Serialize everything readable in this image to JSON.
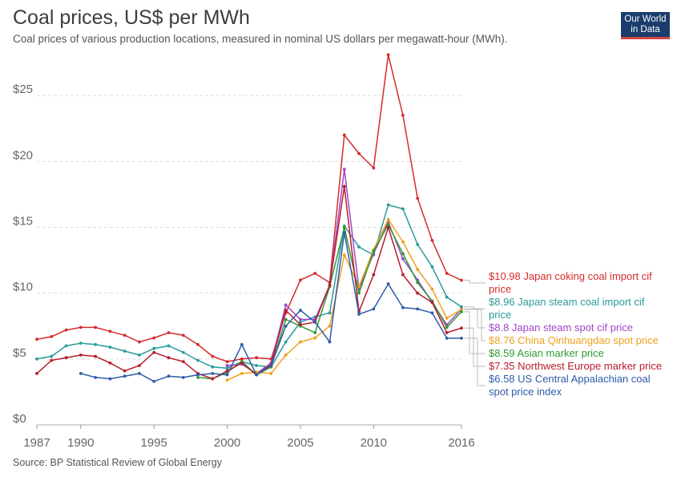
{
  "title": "Coal prices, US$ per MWh",
  "subtitle": "Coal prices of various production locations, measured in nominal US dollars per megawatt-hour (MWh).",
  "logo": {
    "line1": "Our World",
    "line2": "in Data"
  },
  "source": "Source: BP Statistical Review of Global Energy",
  "chart_data": {
    "type": "line",
    "title": "Coal prices, US$ per MWh",
    "xlim": [
      1987,
      2016
    ],
    "ylim": [
      0,
      28
    ],
    "x_ticks": [
      "1987",
      "1990",
      "1995",
      "2000",
      "2005",
      "2010",
      "2016"
    ],
    "x_tick_values": [
      1987,
      1990,
      1995,
      2000,
      2005,
      2010,
      2016
    ],
    "y_ticks": [
      "$0",
      "$5",
      "$10",
      "$15",
      "$20",
      "$25"
    ],
    "y_tick_values": [
      0,
      5,
      10,
      15,
      20,
      25
    ],
    "grid": "horizontal dashed",
    "legend": "right, end-of-line labels",
    "series": [
      {
        "name": "Japan coking coal import cif price",
        "label": "$10.98 Japan coking coal import cif price",
        "color": "#d42b2b",
        "x": [
          1987,
          1988,
          1989,
          1990,
          1991,
          1992,
          1993,
          1994,
          1995,
          1996,
          1997,
          1998,
          1999,
          2000,
          2001,
          2002,
          2003,
          2004,
          2005,
          2006,
          2007,
          2008,
          2009,
          2010,
          2011,
          2012,
          2013,
          2014,
          2015,
          2016
        ],
        "y": [
          6.5,
          6.7,
          7.2,
          7.4,
          7.4,
          7.1,
          6.8,
          6.3,
          6.6,
          7.0,
          6.8,
          6.1,
          5.2,
          4.8,
          5.0,
          5.1,
          5.0,
          8.5,
          11.0,
          11.5,
          10.8,
          22.0,
          20.6,
          19.5,
          28.1,
          23.5,
          17.2,
          14.0,
          11.5,
          10.98
        ]
      },
      {
        "name": "Japan steam coal import cif price",
        "label": "$8.96 Japan steam coal import cif price",
        "color": "#2a9a9a",
        "x": [
          1987,
          1988,
          1989,
          1990,
          1991,
          1992,
          1993,
          1994,
          1995,
          1996,
          1997,
          1998,
          1999,
          2000,
          2001,
          2002,
          2003,
          2004,
          2005,
          2006,
          2007,
          2008,
          2009,
          2010,
          2011,
          2012,
          2013,
          2014,
          2015,
          2016
        ],
        "y": [
          5.0,
          5.2,
          6.0,
          6.2,
          6.1,
          5.9,
          5.6,
          5.3,
          5.8,
          6.0,
          5.5,
          4.9,
          4.4,
          4.3,
          4.8,
          4.5,
          4.4,
          6.3,
          7.8,
          8.2,
          8.5,
          15.1,
          13.5,
          12.9,
          16.7,
          16.4,
          13.7,
          12.0,
          9.7,
          8.96
        ]
      },
      {
        "name": "Japan steam spot cif price",
        "label": "$8.8 Japan steam spot cif price",
        "color": "#a046c8",
        "x": [
          2000,
          2001,
          2002,
          2003,
          2004,
          2005,
          2006,
          2007,
          2008,
          2009,
          2010,
          2011,
          2012,
          2013,
          2014,
          2015,
          2016
        ],
        "y": [
          4.5,
          4.6,
          3.9,
          4.7,
          9.1,
          8.0,
          8.0,
          10.6,
          19.4,
          10.3,
          13.0,
          15.4,
          12.6,
          11.0,
          9.3,
          7.6,
          8.8
        ]
      },
      {
        "name": "China Qinhuangdao spot price",
        "label": "$8.76 China Qinhuangdao spot price",
        "color": "#f0a020",
        "x": [
          2000,
          2001,
          2002,
          2003,
          2004,
          2005,
          2006,
          2007,
          2008,
          2009,
          2010,
          2011,
          2012,
          2013,
          2014,
          2015,
          2016
        ],
        "y": [
          3.4,
          3.9,
          4.0,
          3.9,
          5.3,
          6.3,
          6.6,
          7.5,
          12.9,
          10.5,
          13.3,
          15.6,
          13.9,
          11.8,
          10.3,
          8.1,
          8.76
        ]
      },
      {
        "name": "Asian marker price",
        "label": "$8.59 Asian marker price",
        "color": "#2e9a34",
        "x": [
          1998,
          1999,
          2000,
          2001,
          2002,
          2003,
          2004,
          2005,
          2006,
          2007,
          2008,
          2009,
          2010,
          2011,
          2012,
          2013,
          2014,
          2015,
          2016
        ],
        "y": [
          3.6,
          3.5,
          4.0,
          4.8,
          3.8,
          4.4,
          8.0,
          7.5,
          7.0,
          10.5,
          15.0,
          10.0,
          13.2,
          15.2,
          13.0,
          10.8,
          9.4,
          7.4,
          8.59
        ]
      },
      {
        "name": "Northwest Europe marker price",
        "label": "$7.35 Northwest Europe marker price",
        "color": "#b81c2c",
        "x": [
          1987,
          1988,
          1989,
          1990,
          1991,
          1992,
          1993,
          1994,
          1995,
          1996,
          1997,
          1998,
          1999,
          2000,
          2001,
          2002,
          2003,
          2004,
          2005,
          2006,
          2007,
          2008,
          2009,
          2010,
          2011,
          2012,
          2013,
          2014,
          2015,
          2016
        ],
        "y": [
          3.9,
          4.9,
          5.1,
          5.3,
          5.2,
          4.7,
          4.1,
          4.5,
          5.5,
          5.1,
          4.8,
          3.9,
          3.5,
          4.1,
          4.7,
          3.8,
          4.6,
          8.7,
          7.6,
          7.8,
          10.6,
          18.1,
          8.6,
          11.4,
          15.0,
          11.4,
          10.0,
          9.3,
          7.0,
          7.35
        ]
      },
      {
        "name": "US Central Appalachian coal spot price index",
        "label": "$6.58 US Central Appalachian coal spot price index",
        "color": "#2e5ca8",
        "x": [
          1990,
          1991,
          1992,
          1993,
          1994,
          1995,
          1996,
          1997,
          1998,
          1999,
          2000,
          2001,
          2002,
          2003,
          2004,
          2005,
          2006,
          2007,
          2008,
          2009,
          2010,
          2011,
          2012,
          2013,
          2014,
          2015,
          2016
        ],
        "y": [
          3.9,
          3.6,
          3.5,
          3.7,
          3.9,
          3.3,
          3.7,
          3.6,
          3.8,
          3.9,
          3.8,
          6.1,
          3.8,
          4.5,
          7.5,
          8.7,
          7.8,
          6.3,
          14.6,
          8.4,
          8.8,
          10.7,
          8.9,
          8.8,
          8.5,
          6.58,
          6.58
        ]
      }
    ]
  }
}
